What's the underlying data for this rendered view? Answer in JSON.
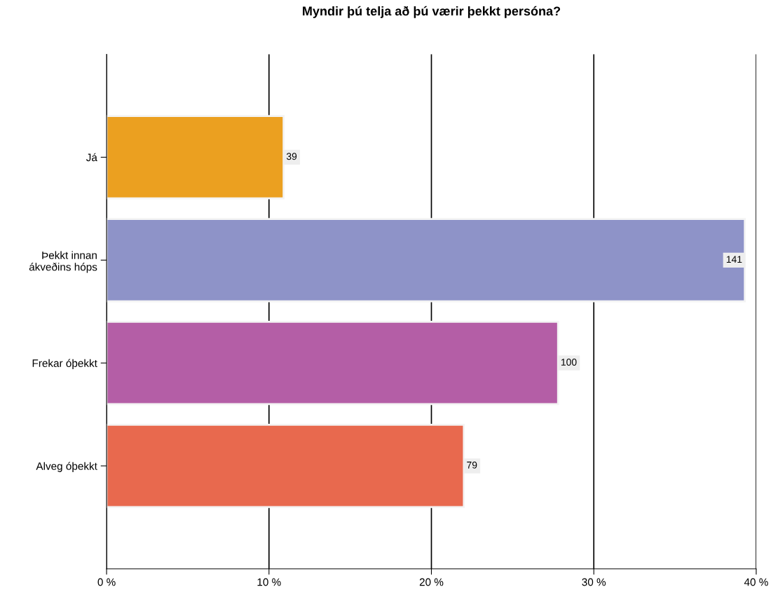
{
  "chart_data": {
    "type": "bar",
    "orientation": "horizontal",
    "title": "Myndir þú telja að þú værir þekkt persóna?",
    "categories": [
      "Já",
      "Þekkt innan\nákveðins hóps",
      "Frekar óþekkt",
      "Alveg óþekkt"
    ],
    "values": [
      10.9,
      39.3,
      27.8,
      22.0
    ],
    "annotations": [
      {
        "text": "39",
        "x": 10.9,
        "y": "Já"
      },
      {
        "text": "141",
        "x": 39.3,
        "y": "Þekkt innan\nákveðins hóps"
      },
      {
        "text": "100",
        "x": 27.8,
        "y": "Frekar óþekkt"
      },
      {
        "text": "79",
        "x": 22.0,
        "y": "Alveg óþekkt"
      }
    ],
    "colors": [
      "#eba020",
      "#8e93c8",
      "#b45ea6",
      "#e8694e"
    ],
    "xlim": [
      0,
      40
    ],
    "xticks": [
      {
        "value": 0,
        "label": "0 %"
      },
      {
        "value": 10,
        "label": "10 %"
      },
      {
        "value": 20,
        "label": "20 %"
      },
      {
        "value": 30,
        "label": "30 %"
      },
      {
        "value": 40,
        "label": "40 %"
      }
    ],
    "grid": "x",
    "legend": false
  }
}
